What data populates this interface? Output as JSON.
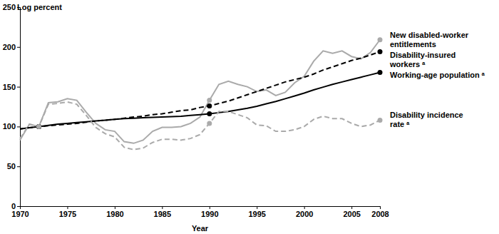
{
  "chart_data": {
    "type": "line",
    "y_label": "Log percent",
    "x_label": "Year",
    "x": [
      1970,
      1971,
      1972,
      1973,
      1974,
      1975,
      1976,
      1977,
      1978,
      1979,
      1980,
      1981,
      1982,
      1983,
      1984,
      1985,
      1986,
      1987,
      1988,
      1989,
      1990,
      1991,
      1992,
      1993,
      1994,
      1995,
      1996,
      1997,
      1998,
      1999,
      2000,
      2001,
      2002,
      2003,
      2004,
      2005,
      2006,
      2007,
      2008
    ],
    "marker_x": [
      1972,
      1990,
      2008
    ],
    "series": [
      {
        "name": "New disabled-worker entitlements",
        "color": "#aaaaaa",
        "line_style": "solid",
        "marker": "circle",
        "values": [
          83,
          103,
          100,
          130,
          131,
          135,
          133,
          118,
          104,
          96,
          94,
          81,
          79,
          83,
          94,
          99,
          99,
          100,
          104,
          112,
          133,
          153,
          157,
          153,
          150,
          144,
          146,
          139,
          143,
          155,
          163,
          182,
          195,
          192,
          195,
          188,
          185,
          193,
          209
        ]
      },
      {
        "name": "Disability-insured workers ᵃ",
        "color": "#000000",
        "line_style": "dashed",
        "marker": "circle",
        "values": [
          97,
          98.5,
          100,
          101,
          102,
          103,
          104,
          105.5,
          107,
          108,
          109,
          110.5,
          112,
          113,
          115,
          116,
          118,
          120,
          121,
          124,
          126,
          129,
          132,
          136,
          140,
          144,
          148,
          152,
          156,
          159,
          162,
          166,
          171,
          175,
          179,
          183,
          186,
          190,
          194
        ]
      },
      {
        "name": "Working-age population ᵃ",
        "color": "#000000",
        "line_style": "solid",
        "marker": "circle",
        "values": [
          97,
          98.5,
          100,
          101.5,
          103,
          104,
          105,
          106,
          107,
          108,
          109,
          110,
          110.5,
          111,
          111.5,
          112,
          112.5,
          113,
          114,
          115,
          116,
          117.5,
          119,
          121,
          123,
          125.5,
          128.5,
          131.5,
          135,
          138.5,
          142,
          146,
          149.5,
          153,
          156,
          159,
          162,
          165,
          168
        ]
      },
      {
        "name": "Disability incidence rate ᵃ",
        "color": "#aaaaaa",
        "line_style": "dashed",
        "marker": "circle",
        "values": [
          85,
          103,
          100,
          128,
          129,
          131,
          128,
          114,
          99,
          91,
          87,
          74,
          71,
          73,
          80,
          84,
          84,
          83,
          85,
          90,
          104,
          119,
          119,
          115,
          111,
          102,
          101,
          94,
          94,
          96,
          100,
          109,
          113,
          110,
          110,
          104,
          100,
          102,
          108
        ]
      }
    ],
    "xlim": [
      1970,
      2008
    ],
    "xticks": [
      1970,
      1975,
      1980,
      1985,
      1990,
      1995,
      2000,
      2005,
      2008
    ],
    "ylim": [
      0,
      250
    ],
    "yticks": [
      0,
      50,
      100,
      150,
      200,
      250
    ],
    "grid": false
  }
}
